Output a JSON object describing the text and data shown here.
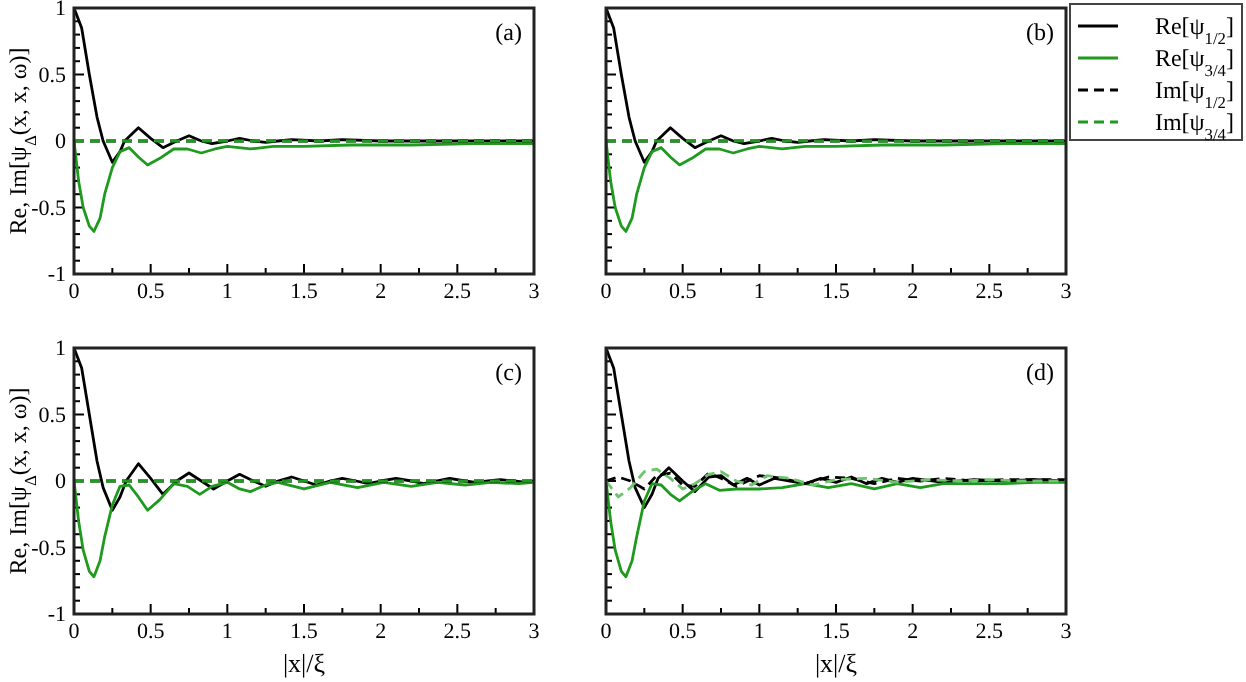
{
  "chart_data": [
    {
      "type": "line",
      "ylabel": "Re, Im[ψ$_{Δ}$(x, x, ω)]",
      "annotations": [
        "(a)"
      ],
      "xlim": [
        0,
        3
      ],
      "ylim": [
        -1,
        1
      ],
      "xticks": [
        0,
        {
          "value": 0.25,
          "label": null
        },
        0.5,
        {
          "value": 0.75,
          "label": null
        },
        1,
        {
          "value": 1.25,
          "label": null
        },
        1.5,
        {
          "value": 1.75,
          "label": null
        },
        2,
        {
          "value": 2.25,
          "label": null
        },
        2.5,
        {
          "value": 2.75,
          "label": null
        },
        3
      ],
      "yticks": [
        -1,
        {
          "value": -0.9,
          "label": null
        },
        {
          "value": -0.8,
          "label": null
        },
        {
          "value": -0.7,
          "label": null
        },
        {
          "value": -0.6,
          "label": null
        },
        -0.5,
        {
          "value": -0.4,
          "label": null
        },
        {
          "value": -0.3,
          "label": null
        },
        {
          "value": -0.2,
          "label": null
        },
        {
          "value": -0.1,
          "label": null
        },
        0,
        {
          "value": 0.1,
          "label": null
        },
        {
          "value": 0.2,
          "label": null
        },
        {
          "value": 0.3,
          "label": null
        },
        {
          "value": 0.4,
          "label": null
        },
        0.5,
        {
          "value": 0.6,
          "label": null
        },
        {
          "value": 0.7,
          "label": null
        },
        {
          "value": 0.8,
          "label": null
        },
        {
          "value": 0.9,
          "label": null
        },
        1
      ],
      "series": [
        {
          "color": "#000000",
          "line_style": "solid",
          "x": [
            0,
            0.05,
            0.1,
            0.15,
            0.19,
            0.25,
            0.3,
            0.33,
            0.42,
            0.5,
            0.58,
            0.67,
            0.75,
            0.83,
            0.9,
            1.0,
            1.08,
            1.17,
            1.25,
            1.33,
            1.42,
            1.6,
            1.75,
            2.0,
            2.5,
            3
          ],
          "values": [
            1,
            0.85,
            0.5,
            0.18,
            0,
            -0.16,
            -0.08,
            0,
            0.1,
            0.02,
            -0.05,
            0,
            0.04,
            0,
            -0.02,
            0,
            0.02,
            0,
            -0.01,
            0,
            0.01,
            0,
            0.01,
            0,
            0,
            0
          ]
        },
        {
          "color": "#1f9a1f",
          "line_style": "solid",
          "x": [
            0,
            0.03,
            0.06,
            0.1,
            0.13,
            0.17,
            0.2,
            0.25,
            0.3,
            0.36,
            0.42,
            0.48,
            0.56,
            0.65,
            0.74,
            0.83,
            0.92,
            1.0,
            1.15,
            1.3,
            1.5,
            1.8,
            2.2,
            2.6,
            3
          ],
          "values": [
            0,
            -0.3,
            -0.5,
            -0.64,
            -0.68,
            -0.58,
            -0.4,
            -0.2,
            -0.08,
            -0.05,
            -0.12,
            -0.18,
            -0.13,
            -0.06,
            -0.06,
            -0.09,
            -0.06,
            -0.04,
            -0.06,
            -0.04,
            -0.04,
            -0.03,
            -0.03,
            -0.02,
            -0.02
          ]
        },
        {
          "color": "#000000",
          "line_style": "dashed",
          "x": [
            0,
            3
          ],
          "values": [
            0,
            0
          ]
        },
        {
          "color": "#1f9a1f",
          "line_style": "dashed",
          "x": [
            0,
            3
          ],
          "values": [
            0,
            0
          ]
        }
      ]
    },
    {
      "type": "line",
      "annotations": [
        "(b)"
      ],
      "legend": "right",
      "tick_labels": "x",
      "xlim": [
        0,
        3
      ],
      "ylim": [
        -1,
        1
      ],
      "xticks": [
        0,
        {
          "value": 0.25,
          "label": null
        },
        0.5,
        {
          "value": 0.75,
          "label": null
        },
        1,
        {
          "value": 1.25,
          "label": null
        },
        1.5,
        {
          "value": 1.75,
          "label": null
        },
        2,
        {
          "value": 2.25,
          "label": null
        },
        2.5,
        {
          "value": 2.75,
          "label": null
        },
        3
      ],
      "yticks": [
        -1,
        {
          "value": -0.9,
          "label": null
        },
        {
          "value": -0.8,
          "label": null
        },
        {
          "value": -0.7,
          "label": null
        },
        {
          "value": -0.6,
          "label": null
        },
        -0.5,
        {
          "value": -0.4,
          "label": null
        },
        {
          "value": -0.3,
          "label": null
        },
        {
          "value": -0.2,
          "label": null
        },
        {
          "value": -0.1,
          "label": null
        },
        0,
        {
          "value": 0.1,
          "label": null
        },
        {
          "value": 0.2,
          "label": null
        },
        {
          "value": 0.3,
          "label": null
        },
        {
          "value": 0.4,
          "label": null
        },
        0.5,
        {
          "value": 0.6,
          "label": null
        },
        {
          "value": 0.7,
          "label": null
        },
        {
          "value": 0.8,
          "label": null
        },
        {
          "value": 0.9,
          "label": null
        },
        1
      ],
      "series": [
        {
          "name": "Re[ψ$_{1/2}$]",
          "color": "#000000",
          "line_style": "solid",
          "x": [
            0,
            0.05,
            0.1,
            0.15,
            0.19,
            0.25,
            0.3,
            0.33,
            0.42,
            0.5,
            0.58,
            0.67,
            0.75,
            0.83,
            0.9,
            1.0,
            1.08,
            1.17,
            1.25,
            1.33,
            1.42,
            1.6,
            1.75,
            2.0,
            2.5,
            3
          ],
          "values": [
            1,
            0.85,
            0.5,
            0.18,
            0,
            -0.16,
            -0.08,
            0,
            0.1,
            0.02,
            -0.05,
            0,
            0.04,
            0,
            -0.02,
            0,
            0.02,
            0,
            -0.01,
            0,
            0.01,
            0,
            0.01,
            0,
            0,
            0
          ]
        },
        {
          "name": "Re[ψ$_{3/4}$]",
          "color": "#1f9a1f",
          "line_style": "solid",
          "x": [
            0,
            0.03,
            0.06,
            0.1,
            0.13,
            0.17,
            0.2,
            0.25,
            0.3,
            0.36,
            0.42,
            0.48,
            0.56,
            0.65,
            0.74,
            0.83,
            0.92,
            1.0,
            1.15,
            1.3,
            1.5,
            1.8,
            2.2,
            2.6,
            3
          ],
          "values": [
            0,
            -0.3,
            -0.5,
            -0.64,
            -0.68,
            -0.58,
            -0.4,
            -0.2,
            -0.08,
            -0.05,
            -0.12,
            -0.18,
            -0.13,
            -0.06,
            -0.06,
            -0.09,
            -0.06,
            -0.04,
            -0.06,
            -0.04,
            -0.04,
            -0.03,
            -0.03,
            -0.02,
            -0.02
          ]
        },
        {
          "name": "Im[ψ$_{1/2}$]",
          "color": "#000000",
          "line_style": "dashed",
          "x": [
            0,
            3
          ],
          "values": [
            0,
            0
          ]
        },
        {
          "name": "Im[ψ$_{3/4}$]",
          "color": "#1f9a1f",
          "line_style": "dashed",
          "x": [
            0,
            3
          ],
          "values": [
            0,
            0
          ]
        }
      ]
    },
    {
      "type": "line",
      "ylabel": "Re, Im[ψ$_{Δ}$(x, x, ω)]",
      "xlabel": "|x|/ξ",
      "annotations": [
        "(c)"
      ],
      "xlim": [
        0,
        3
      ],
      "ylim": [
        -1,
        1
      ],
      "xticks": [
        0,
        {
          "value": 0.25,
          "label": null
        },
        0.5,
        {
          "value": 0.75,
          "label": null
        },
        1,
        {
          "value": 1.25,
          "label": null
        },
        1.5,
        {
          "value": 1.75,
          "label": null
        },
        2,
        {
          "value": 2.25,
          "label": null
        },
        2.5,
        {
          "value": 2.75,
          "label": null
        },
        3
      ],
      "yticks": [
        -1,
        {
          "value": -0.9,
          "label": null
        },
        {
          "value": -0.8,
          "label": null
        },
        {
          "value": -0.7,
          "label": null
        },
        {
          "value": -0.6,
          "label": null
        },
        -0.5,
        {
          "value": -0.4,
          "label": null
        },
        {
          "value": -0.3,
          "label": null
        },
        {
          "value": -0.2,
          "label": null
        },
        {
          "value": -0.1,
          "label": null
        },
        0,
        {
          "value": 0.1,
          "label": null
        },
        {
          "value": 0.2,
          "label": null
        },
        {
          "value": 0.3,
          "label": null
        },
        {
          "value": 0.4,
          "label": null
        },
        0.5,
        {
          "value": 0.6,
          "label": null
        },
        {
          "value": 0.7,
          "label": null
        },
        {
          "value": 0.8,
          "label": null
        },
        {
          "value": 0.9,
          "label": null
        },
        1
      ],
      "series": [
        {
          "color": "#000000",
          "line_style": "solid",
          "x": [
            0,
            0.05,
            0.1,
            0.15,
            0.19,
            0.25,
            0.3,
            0.34,
            0.42,
            0.5,
            0.58,
            0.67,
            0.75,
            0.83,
            0.91,
            1.0,
            1.08,
            1.17,
            1.25,
            1.33,
            1.42,
            1.5,
            1.58,
            1.67,
            1.75,
            1.84,
            1.92,
            2.0,
            2.1,
            2.2,
            2.28,
            2.36,
            2.45,
            2.55,
            2.62,
            2.7,
            2.78,
            2.87,
            2.95,
            3
          ],
          "values": [
            1,
            0.85,
            0.5,
            0.15,
            -0.05,
            -0.22,
            -0.12,
            0,
            0.13,
            0.02,
            -0.1,
            0,
            0.06,
            0,
            -0.06,
            0,
            0.05,
            0,
            -0.04,
            0,
            0.03,
            0,
            -0.03,
            0,
            0.02,
            0,
            -0.02,
            0,
            0.02,
            0,
            -0.02,
            0,
            0.02,
            0,
            -0.01,
            0,
            0.01,
            0,
            -0.01,
            0
          ]
        },
        {
          "color": "#1f9a1f",
          "line_style": "solid",
          "x": [
            0,
            0.03,
            0.06,
            0.1,
            0.13,
            0.17,
            0.2,
            0.25,
            0.3,
            0.36,
            0.42,
            0.48,
            0.56,
            0.65,
            0.74,
            0.82,
            0.9,
            1.0,
            1.08,
            1.15,
            1.25,
            1.33,
            1.5,
            1.67,
            1.85,
            2.02,
            2.2,
            2.37,
            2.55,
            2.72,
            2.9,
            3
          ],
          "values": [
            0,
            -0.3,
            -0.52,
            -0.68,
            -0.72,
            -0.6,
            -0.42,
            -0.18,
            -0.04,
            -0.03,
            -0.12,
            -0.22,
            -0.14,
            -0.02,
            -0.04,
            -0.1,
            -0.04,
            -0.01,
            -0.06,
            -0.08,
            -0.03,
            -0.01,
            -0.06,
            -0.01,
            -0.05,
            -0.01,
            -0.04,
            -0.01,
            -0.03,
            -0.01,
            -0.02,
            -0.01
          ]
        },
        {
          "color": "#000000",
          "line_style": "dashed",
          "x": [
            0,
            3
          ],
          "values": [
            0,
            0
          ]
        },
        {
          "color": "#1f9a1f",
          "line_style": "dashed",
          "x": [
            0,
            3
          ],
          "values": [
            0,
            0
          ]
        }
      ]
    },
    {
      "type": "line",
      "xlabel": "|x|/ξ",
      "annotations": [
        "(d)"
      ],
      "tick_labels": "x",
      "xlim": [
        0,
        3
      ],
      "ylim": [
        -1,
        1
      ],
      "xticks": [
        0,
        {
          "value": 0.25,
          "label": null
        },
        0.5,
        {
          "value": 0.75,
          "label": null
        },
        1,
        {
          "value": 1.25,
          "label": null
        },
        1.5,
        {
          "value": 1.75,
          "label": null
        },
        2,
        {
          "value": 2.25,
          "label": null
        },
        2.5,
        {
          "value": 2.75,
          "label": null
        },
        3
      ],
      "yticks": [
        -1,
        {
          "value": -0.9,
          "label": null
        },
        {
          "value": -0.8,
          "label": null
        },
        {
          "value": -0.7,
          "label": null
        },
        {
          "value": -0.6,
          "label": null
        },
        -0.5,
        {
          "value": -0.4,
          "label": null
        },
        {
          "value": -0.3,
          "label": null
        },
        {
          "value": -0.2,
          "label": null
        },
        {
          "value": -0.1,
          "label": null
        },
        0,
        {
          "value": 0.1,
          "label": null
        },
        {
          "value": 0.2,
          "label": null
        },
        {
          "value": 0.3,
          "label": null
        },
        {
          "value": 0.4,
          "label": null
        },
        0.5,
        {
          "value": 0.6,
          "label": null
        },
        {
          "value": 0.7,
          "label": null
        },
        {
          "value": 0.8,
          "label": null
        },
        {
          "value": 0.9,
          "label": null
        },
        1
      ],
      "series": [
        {
          "color": "#000000",
          "line_style": "solid",
          "x": [
            0,
            0.05,
            0.1,
            0.15,
            0.19,
            0.25,
            0.3,
            0.34,
            0.41,
            0.5,
            0.58,
            0.67,
            0.75,
            0.83,
            0.92,
            1.0,
            1.1,
            1.2,
            1.3,
            1.4,
            1.5,
            1.6,
            1.7,
            1.8,
            1.9,
            2.0,
            2.2,
            2.4,
            2.6,
            2.8,
            3
          ],
          "values": [
            1,
            0.85,
            0.5,
            0.15,
            -0.05,
            -0.2,
            -0.1,
            0.02,
            0.1,
            0,
            -0.08,
            0.03,
            0.04,
            -0.03,
            0.02,
            -0.03,
            0.02,
            0,
            -0.02,
            0.02,
            -0.01,
            0.03,
            -0.02,
            0.02,
            -0.01,
            0.02,
            -0.01,
            0.01,
            0,
            0.01,
            0
          ]
        },
        {
          "color": "#1f9a1f",
          "line_style": "solid",
          "x": [
            0,
            0.03,
            0.06,
            0.1,
            0.13,
            0.17,
            0.2,
            0.25,
            0.3,
            0.36,
            0.42,
            0.48,
            0.56,
            0.65,
            0.74,
            0.85,
            1.0,
            1.15,
            1.3,
            1.45,
            1.6,
            1.75,
            1.9,
            2.05,
            2.2,
            2.4,
            2.6,
            2.8,
            3
          ],
          "values": [
            0,
            -0.3,
            -0.52,
            -0.68,
            -0.72,
            -0.6,
            -0.42,
            -0.15,
            -0.02,
            -0.03,
            -0.1,
            -0.15,
            -0.08,
            -0.02,
            -0.07,
            -0.06,
            -0.06,
            -0.05,
            -0.02,
            -0.05,
            -0.02,
            -0.06,
            -0.02,
            -0.05,
            -0.02,
            -0.02,
            -0.02,
            -0.01,
            -0.01
          ]
        },
        {
          "color": "#000000",
          "line_style": "dashed",
          "x": [
            0,
            0.08,
            0.16,
            0.25,
            0.33,
            0.42,
            0.5,
            0.58,
            0.67,
            0.75,
            0.85,
            1.0,
            1.15,
            1.3,
            1.45,
            1.6,
            1.75,
            1.9,
            2.05,
            2.2,
            2.4,
            2.6,
            2.8,
            3
          ],
          "values": [
            0,
            0.03,
            0,
            -0.06,
            0.04,
            0.06,
            -0.03,
            -0.04,
            0.06,
            0.02,
            -0.04,
            0.04,
            0.02,
            -0.02,
            0.03,
            0.02,
            -0.02,
            0.02,
            0,
            0.02,
            0,
            0.01,
            0.01,
            0.01
          ]
        },
        {
          "color": "#6cc46c",
          "line_style": "dashed",
          "x": [
            0,
            0.08,
            0.16,
            0.25,
            0.33,
            0.42,
            0.5,
            0.58,
            0.67,
            0.75,
            0.85,
            0.95,
            1.05,
            1.2,
            1.35,
            1.5,
            1.7,
            1.9,
            2.1,
            2.3,
            2.5,
            2.7,
            2.9,
            3
          ],
          "values": [
            0,
            -0.12,
            -0.05,
            0.07,
            0.09,
            0.02,
            -0.06,
            -0.02,
            0.05,
            0.07,
            0,
            -0.03,
            0.04,
            0.02,
            -0.03,
            0.01,
            0.02,
            -0.01,
            0.01,
            0,
            0.01,
            0,
            0,
            0
          ]
        }
      ]
    }
  ]
}
